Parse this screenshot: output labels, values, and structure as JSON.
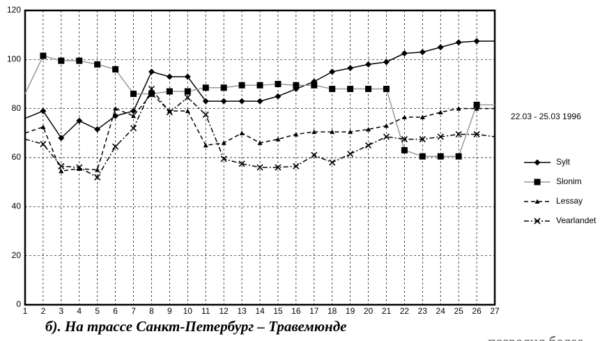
{
  "chart_data": {
    "type": "line",
    "annotation": "22.03 - 25.03 1996",
    "caption": "б). На трассе Санкт-Петербург – Травемюнде",
    "footer_text": "позволил более",
    "x": [
      1,
      2,
      3,
      4,
      5,
      6,
      7,
      8,
      9,
      10,
      11,
      12,
      13,
      14,
      15,
      16,
      17,
      18,
      19,
      20,
      21,
      22,
      23,
      24,
      25,
      26,
      27
    ],
    "xlim": [
      1,
      27
    ],
    "xticks": [
      1,
      2,
      3,
      4,
      5,
      6,
      7,
      8,
      9,
      10,
      11,
      12,
      13,
      14,
      15,
      16,
      17,
      18,
      19,
      20,
      21,
      22,
      23,
      24,
      25,
      26,
      27
    ],
    "ylim": [
      0,
      120
    ],
    "yticks": [
      0,
      20,
      40,
      60,
      80,
      100,
      120
    ],
    "grid": true,
    "legend": "right",
    "series": [
      {
        "name": "Sylt",
        "color": "#000000",
        "linestyle": "solid",
        "marker": "diamond",
        "values": [
          76,
          79,
          68,
          75,
          71.5,
          77,
          79,
          95,
          93,
          93,
          83,
          83,
          83,
          83,
          85,
          88,
          91,
          95,
          96.5,
          98,
          99,
          102.5,
          103,
          105,
          107,
          107.5,
          107.5
        ]
      },
      {
        "name": "Slonim",
        "color": "#999999",
        "linestyle": "solid",
        "marker": "square",
        "values": [
          86,
          101.5,
          99.5,
          99.5,
          98,
          96,
          86,
          86,
          87,
          87,
          88.5,
          88.5,
          89.5,
          89.5,
          90,
          89.5,
          89.5,
          88,
          88,
          88,
          88,
          63,
          60.5,
          60.5,
          60.5,
          81.5,
          81.5
        ]
      },
      {
        "name": "Lessay",
        "color": "#000000",
        "linestyle": "dashed",
        "marker": "triangle",
        "values": [
          70,
          72.5,
          54.5,
          55.5,
          55,
          80,
          77,
          86,
          79,
          79,
          65,
          66,
          70,
          66,
          67.5,
          69.5,
          70.5,
          70.5,
          70.5,
          71.5,
          73,
          76.5,
          76.5,
          78.5,
          80,
          80,
          80
        ]
      },
      {
        "name": "Vearlandet",
        "color": "#000000",
        "linestyle": "dashdot",
        "marker": "x",
        "values": [
          67.5,
          65.5,
          56.5,
          56,
          52,
          64.5,
          72,
          88,
          78.5,
          84.5,
          77.5,
          59.5,
          57.5,
          56,
          56,
          56.5,
          61,
          58,
          61.5,
          65,
          68.5,
          67.5,
          67.5,
          68.5,
          69.5,
          69.5,
          68.5
        ]
      }
    ]
  }
}
